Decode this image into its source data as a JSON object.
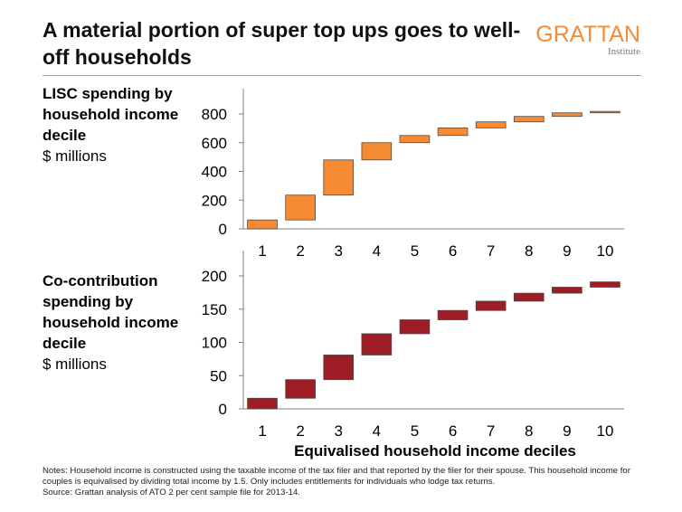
{
  "title": "A material portion of super top ups goes to well-off households",
  "logo": {
    "main": "GRATTAN",
    "sub": "Institute"
  },
  "colors": {
    "orange": "#f68b33",
    "darkred": "#9e1c23",
    "axis": "#7f7f7f"
  },
  "panels": [
    {
      "label_bold": "LISC spending by household income decile",
      "label_unit": "$ millions"
    },
    {
      "label_bold": "Co-contribution spending by household income decile",
      "label_unit": "$ millions"
    }
  ],
  "xlabel": "Equivalised household income deciles",
  "notes": [
    "Notes: Household income is constructed using the taxable income of the tax filer and that reported by the filer for their spouse. This household income for couples is equivalised by dividing total income by 1.5. Only includes entitlements for individuals who lodge tax returns.",
    "Source: Grattan analysis of ATO 2 per cent sample file for 2013-14."
  ],
  "chart_data": [
    {
      "type": "bar",
      "subtype": "waterfall",
      "categories": [
        "1",
        "2",
        "3",
        "4",
        "5",
        "6",
        "7",
        "8",
        "9",
        "10"
      ],
      "start": [
        0,
        62,
        235,
        480,
        600,
        650,
        703,
        745,
        783,
        808
      ],
      "end": [
        62,
        235,
        480,
        600,
        650,
        703,
        745,
        783,
        808,
        818
      ],
      "ylim": [
        0,
        800
      ],
      "yticks": [
        0,
        200,
        400,
        600,
        800
      ],
      "color": "#f68b33",
      "grid": false
    },
    {
      "type": "bar",
      "subtype": "waterfall",
      "categories": [
        "1",
        "2",
        "3",
        "4",
        "5",
        "6",
        "7",
        "8",
        "9",
        "10"
      ],
      "start": [
        0,
        16,
        44,
        81,
        113,
        134,
        148,
        162,
        174,
        183
      ],
      "end": [
        16,
        44,
        81,
        113,
        134,
        148,
        162,
        174,
        183,
        191
      ],
      "ylim": [
        0,
        200
      ],
      "yticks": [
        0,
        50,
        100,
        150,
        200
      ],
      "color": "#9e1c23",
      "grid": false
    }
  ]
}
